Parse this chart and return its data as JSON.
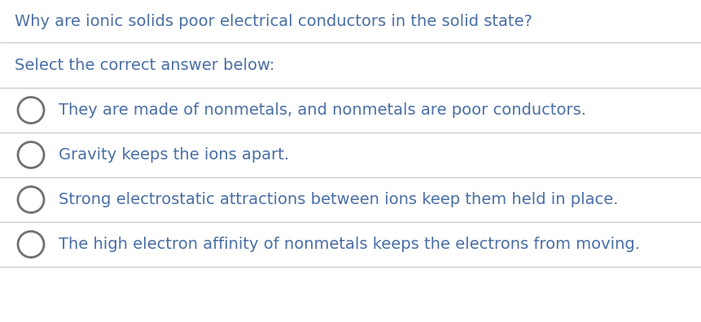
{
  "background_color": "#ffffff",
  "title": "Why are ionic solids poor electrical conductors in the solid state?",
  "title_color": "#4a6fa5",
  "title_fontsize": 14,
  "subtitle": "Select the correct answer below:",
  "subtitle_color": "#4a6fa5",
  "subtitle_fontsize": 14,
  "options": [
    "They are made of nonmetals, and nonmetals are poor conductors.",
    "Gravity keeps the ions apart.",
    "Strong electrostatic attractions between ions keep them held in place.",
    "The high electron affinity of nonmetals keeps the electrons from moving."
  ],
  "option_color": "#4a6fa5",
  "option_fontsize": 14,
  "circle_edge_color": "#707070",
  "circle_linewidth": 2.0,
  "line_color": "#cccccc",
  "line_width": 1.0,
  "fig_width": 8.62,
  "fig_height": 3.96,
  "dpi": 100
}
